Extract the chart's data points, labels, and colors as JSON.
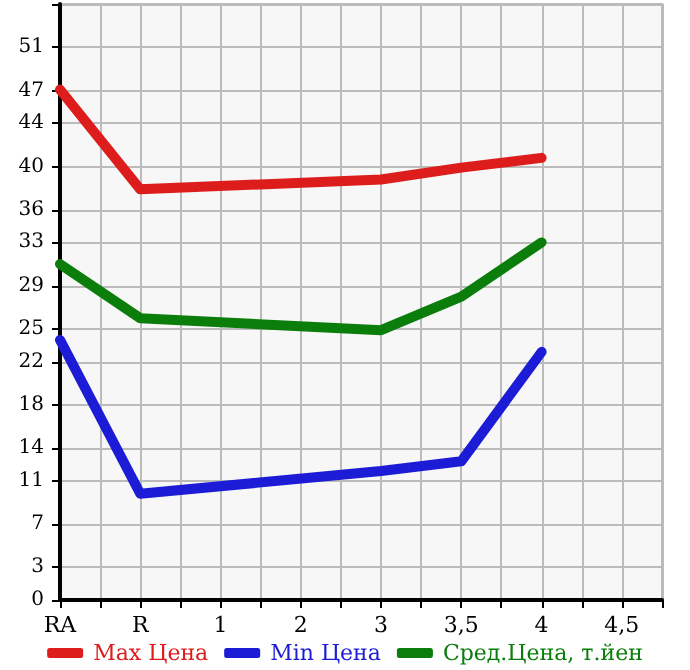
{
  "chart_data": {
    "type": "line",
    "categories": [
      "RA",
      "R",
      "1",
      "2",
      "3",
      "3,5",
      "4",
      "4,5"
    ],
    "series": [
      {
        "name": "Max Цена",
        "color": "#dd1c1c",
        "values": [
          47.1,
          37.9,
          null,
          null,
          38.8,
          39.9,
          40.8,
          null
        ]
      },
      {
        "name": "Min Цена",
        "color": "#1c1cd6",
        "values": [
          24.0,
          9.8,
          null,
          null,
          11.9,
          12.8,
          22.9,
          null
        ]
      },
      {
        "name": "Сред.Цена, т.йен",
        "color": "#0a7d0a",
        "values": [
          31.0,
          26.0,
          null,
          null,
          24.9,
          28.0,
          33.0,
          null
        ]
      }
    ],
    "ylim": [
      0,
      55
    ],
    "yticks": [
      0,
      3,
      7,
      11,
      14,
      18,
      22,
      25,
      29,
      33,
      36,
      40,
      44,
      47,
      51,
      {
        "value": 55,
        "label": null
      }
    ],
    "grid": true,
    "legend": "bottom",
    "marker": "none",
    "line_style": "solid"
  }
}
